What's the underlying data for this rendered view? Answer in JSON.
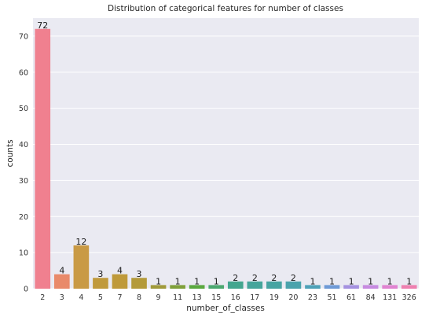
{
  "chart_data": {
    "type": "bar",
    "title": "Distribution of categorical features for number of classes",
    "xlabel": "number_of_classes",
    "ylabel": "counts",
    "categories": [
      "2",
      "3",
      "4",
      "5",
      "7",
      "8",
      "9",
      "11",
      "13",
      "15",
      "16",
      "17",
      "19",
      "20",
      "23",
      "51",
      "61",
      "84",
      "131",
      "326"
    ],
    "values": [
      72,
      4,
      12,
      3,
      4,
      3,
      1,
      1,
      1,
      1,
      2,
      2,
      2,
      2,
      1,
      1,
      1,
      1,
      1,
      1
    ],
    "ylim": [
      0,
      75
    ],
    "yticks": [
      0,
      10,
      20,
      30,
      40,
      50,
      60,
      70
    ],
    "grid": true,
    "background": "#eaeaf2",
    "colors": [
      "#f0808f",
      "#e98a6a",
      "#c99a45",
      "#c09a3c",
      "#bf9a3a",
      "#b49a3a",
      "#a09a3a",
      "#7fa03a",
      "#5aa83f",
      "#4ca870",
      "#43a68f",
      "#45a59b",
      "#47a4a2",
      "#4aa3ac",
      "#4ea1b8",
      "#6e9ad6",
      "#a592e0",
      "#c68ae0",
      "#e083d1",
      "#ee80b0"
    ],
    "data_labels": [
      "72",
      "4",
      "12",
      "3",
      "4",
      "3",
      "1",
      "1",
      "1",
      "1",
      "2",
      "2",
      "2",
      "2",
      "1",
      "1",
      "1",
      "1",
      "1",
      "1"
    ]
  }
}
